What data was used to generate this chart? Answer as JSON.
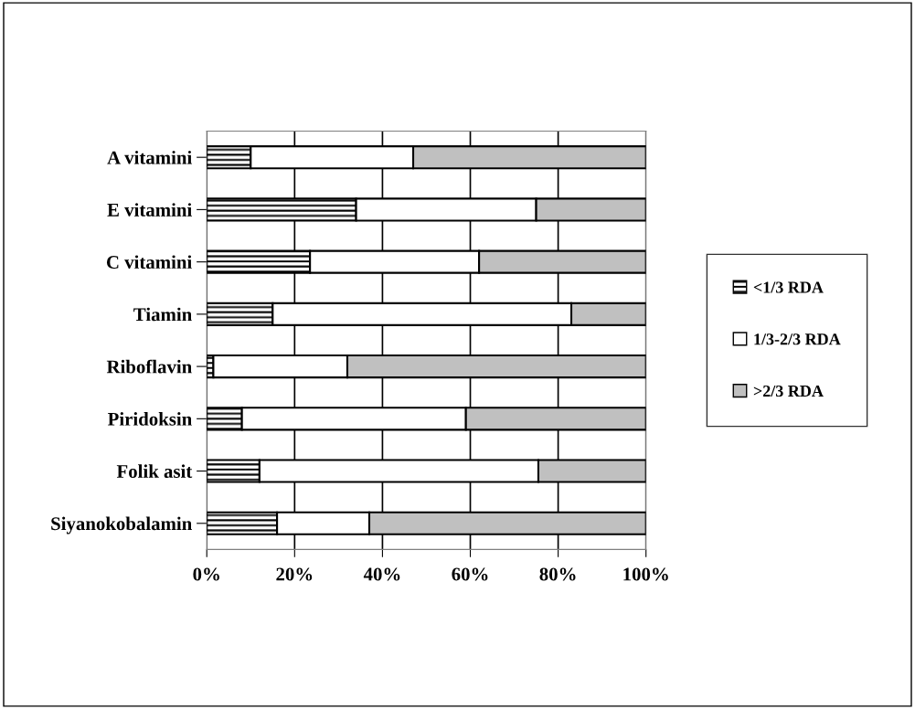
{
  "chart_data": {
    "type": "bar",
    "orientation": "horizontal",
    "stacked": true,
    "categories": [
      "A vitamini",
      "E vitamini",
      "C vitamini",
      "Tiamin",
      "Riboflavin",
      "Piridoksin",
      "Folik asit",
      "Siyanokobalamin"
    ],
    "series": [
      {
        "name": "<1/3 RDA",
        "color": "#000000",
        "values": [
          10,
          34,
          23.5,
          15,
          1.5,
          8,
          12,
          16
        ]
      },
      {
        "name": "1/3-2/3 RDA",
        "color": "#ffffff",
        "values": [
          37,
          41,
          38.5,
          68,
          30.5,
          51,
          63.5,
          21
        ]
      },
      {
        "name": ">2/3 RDA",
        "color": "#c0c0c0",
        "values": [
          53,
          25,
          38,
          17,
          68,
          41,
          24.5,
          63
        ]
      }
    ],
    "xlim": [
      0,
      100
    ],
    "xticks": [
      {
        "value": 0,
        "label": "0%"
      },
      {
        "value": 20,
        "label": "20%"
      },
      {
        "value": 40,
        "label": "40%"
      },
      {
        "value": 60,
        "label": "60%"
      },
      {
        "value": 80,
        "label": "80%"
      },
      {
        "value": 100,
        "label": "100%"
      }
    ],
    "grid": "x",
    "legend": "right"
  }
}
